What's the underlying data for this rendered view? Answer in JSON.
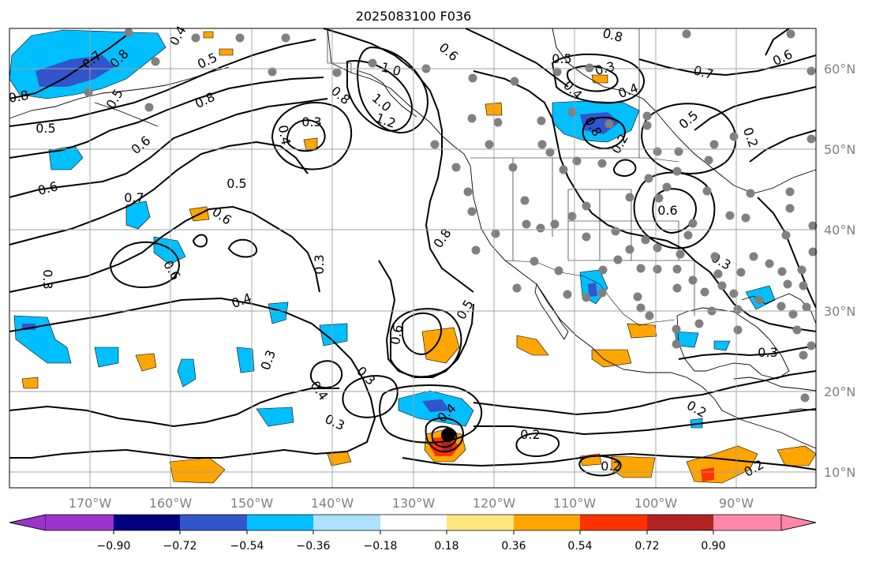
{
  "title": "2025083100 F036",
  "colors": {
    "purple": "#9933cc",
    "navy": "#000080",
    "blue": "#3355cc",
    "sky": "#00bfff",
    "lightblue": "#aee0ff",
    "white": "#ffffff",
    "lightyellow": "#ffe680",
    "orange": "#ffa500",
    "redorange": "#ff3300",
    "darkred": "#b22222",
    "pink": "#ff88aa",
    "station": "#808080"
  },
  "lon_labels": [
    "170°W",
    "160°W",
    "150°W",
    "140°W",
    "130°W",
    "120°W",
    "110°W",
    "100°W",
    "90°W"
  ],
  "lat_labels": [
    "60°N",
    "50°N",
    "40°N",
    "30°N",
    "20°N",
    "10°N"
  ],
  "colorbar": {
    "tick_labels": [
      "−0.90",
      "−0.72",
      "−0.54",
      "−0.36",
      "−0.18",
      "0.18",
      "0.36",
      "0.54",
      "0.72",
      "0.90"
    ]
  },
  "contour_labels": [
    "0.7",
    "0.8",
    "0.5",
    "0.5",
    "0.4",
    "0.6",
    "0.8",
    "0.7",
    "0.5",
    "0.6",
    "0.5",
    "0.6",
    "0.3",
    "0.4",
    "0.3",
    "0.4",
    "0.3",
    "0.6",
    "0.3",
    "0.4",
    "0.3",
    "0.2",
    "0.2",
    "0.3",
    "0.8",
    "0.6",
    "0.4",
    "0.5",
    "0.3",
    "0.4",
    "0.8",
    "0.7",
    "0.6",
    "0.2",
    "0.3",
    "0.4",
    "0.5",
    "0.6",
    "0.8",
    "1.0",
    "1.0",
    "1.2",
    "0.8",
    "0.8",
    "0.6",
    "0.5",
    "0.2",
    "0.2",
    "0.3",
    "0.2"
  ]
}
